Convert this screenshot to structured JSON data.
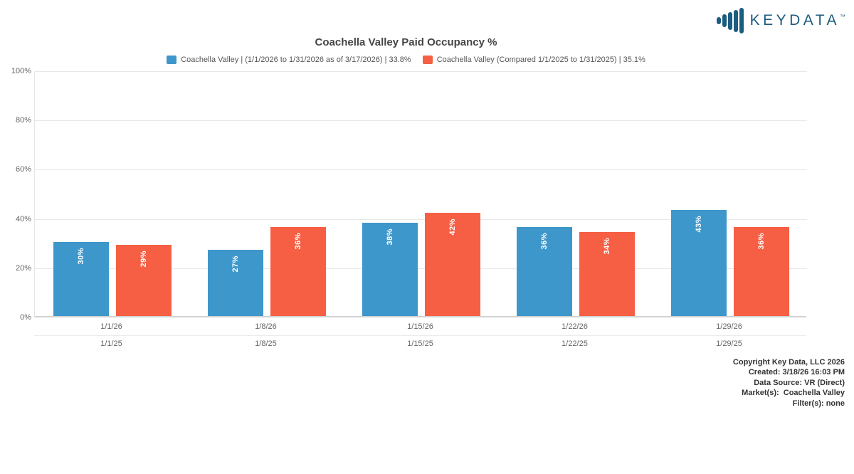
{
  "logo": {
    "text": "KEYDATA",
    "tm": "™"
  },
  "chart_data": {
    "type": "bar",
    "title": "Coachella Valley Paid Occupancy %",
    "ylabel": "",
    "xlabel": "",
    "ylim": [
      0,
      100
    ],
    "yticks": [
      "0%",
      "20%",
      "40%",
      "60%",
      "80%",
      "100%"
    ],
    "grid": true,
    "legend_position": "top",
    "value_suffix": "%",
    "categories_row1": [
      "1/1/26",
      "1/8/26",
      "1/15/26",
      "1/22/26",
      "1/29/26"
    ],
    "categories_row2": [
      "1/1/25",
      "1/8/25",
      "1/15/25",
      "1/22/25",
      "1/29/25"
    ],
    "series": [
      {
        "name": "Coachella Valley | (1/1/2026 to 1/31/2026 as of 3/17/2026) | 33.8%",
        "color": "#3E97CB",
        "values": [
          30,
          27,
          38,
          36,
          43
        ]
      },
      {
        "name": "Coachella Valley (Compared 1/1/2025 to 1/31/2025) | 35.1%",
        "color": "#F65F44",
        "values": [
          29,
          36,
          42,
          34,
          36
        ]
      }
    ]
  },
  "footer": {
    "lines": [
      "Copyright Key Data, LLC 2026",
      "Created: 3/18/26 16:03 PM",
      "Data Source: VR (Direct)",
      "Market(s):  Coachella Valley",
      "Filter(s): none"
    ]
  }
}
